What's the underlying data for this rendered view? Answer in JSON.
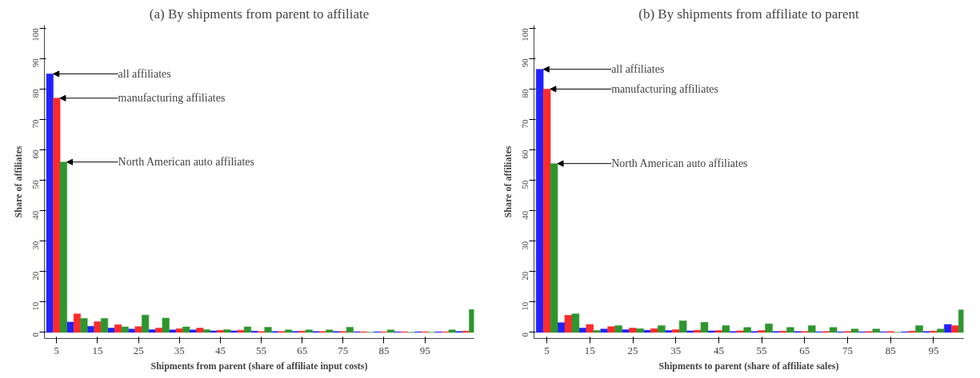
{
  "chart_data": [
    {
      "type": "bar",
      "title": "(a) By shipments from parent to affiliate",
      "xlabel": "Shipments from parent (share of affiliate input costs)",
      "ylabel": "Share of affiliates",
      "x": [
        5,
        10,
        15,
        20,
        25,
        30,
        35,
        40,
        45,
        50,
        55,
        60,
        65,
        70,
        75,
        80,
        85,
        90,
        95,
        100,
        105
      ],
      "series": [
        {
          "color": "#2222ff",
          "values": [
            85,
            3.4,
            2.0,
            1.4,
            1.1,
            0.9,
            0.8,
            0.8,
            0.5,
            0.5,
            0.4,
            0.3,
            0.3,
            0.3,
            0.3,
            0.2,
            0.2,
            0.2,
            0.2,
            0.2,
            0.3
          ]
        },
        {
          "color": "#ff2a2a",
          "values": [
            77,
            6.1,
            3.5,
            2.5,
            1.9,
            1.4,
            1.2,
            1.4,
            0.7,
            0.7,
            0.3,
            0.3,
            0.4,
            0.3,
            0.3,
            0.2,
            0.2,
            0.2,
            0.2,
            0.2,
            0.4
          ]
        },
        {
          "color": "#2e962e",
          "values": [
            56,
            4.6,
            4.6,
            1.8,
            5.7,
            4.7,
            1.8,
            0.9,
            0.9,
            1.8,
            1.7,
            0.8,
            0.8,
            0.8,
            1.7,
            0,
            0.8,
            0,
            0,
            0.8,
            7.5
          ]
        }
      ],
      "xlim": [
        2,
        107
      ],
      "xticks": [
        5,
        15,
        25,
        35,
        45,
        55,
        65,
        75,
        85,
        95
      ],
      "ylim": [
        -2,
        101
      ],
      "yticks": [
        0,
        10,
        20,
        30,
        40,
        50,
        60,
        70,
        80,
        90,
        100
      ],
      "grid": false,
      "annotations": [
        {
          "text": "all affiliates",
          "x": 4.2,
          "y": 85
        },
        {
          "text": "manufacturing affiliates",
          "x": 5.8,
          "y": 77
        },
        {
          "text": "North American auto affiliates",
          "x": 7.5,
          "y": 56
        }
      ]
    },
    {
      "type": "bar",
      "title": "(b) By shipments from affiliate to parent",
      "xlabel": "Shipments to parent (share of affiliate sales)",
      "ylabel": "Share of affiliates",
      "x": [
        5,
        10,
        15,
        20,
        25,
        30,
        35,
        40,
        45,
        50,
        55,
        60,
        65,
        70,
        75,
        80,
        85,
        90,
        95,
        100
      ],
      "series": [
        {
          "color": "#2222ff",
          "values": [
            86.5,
            3.2,
            1.4,
            1.1,
            0.9,
            0.7,
            0.6,
            0.5,
            0.5,
            0.3,
            0.3,
            0.3,
            0.3,
            0.2,
            0.2,
            0.2,
            0.2,
            0.2,
            0.3,
            2.6
          ]
        },
        {
          "color": "#ff2a2a",
          "values": [
            80,
            5.6,
            2.6,
            1.9,
            1.4,
            1.2,
            0.9,
            0.7,
            0.6,
            0.5,
            0.6,
            0.4,
            0.3,
            0.3,
            0.3,
            0.3,
            0.3,
            0.4,
            0.4,
            2.2
          ]
        },
        {
          "color": "#2e962e",
          "values": [
            55.5,
            6.1,
            0.6,
            2.2,
            1.2,
            2.2,
            3.8,
            3.3,
            2.2,
            1.6,
            2.8,
            1.6,
            2.2,
            1.6,
            1.1,
            1.1,
            0,
            2.2,
            1.1,
            7.4
          ]
        }
      ],
      "xlim": [
        2,
        102
      ],
      "xticks": [
        5,
        15,
        25,
        35,
        45,
        55,
        65,
        75,
        85,
        95
      ],
      "ylim": [
        -2,
        101
      ],
      "yticks": [
        0,
        10,
        20,
        30,
        40,
        50,
        60,
        70,
        80,
        90,
        100
      ],
      "grid": false,
      "annotations": [
        {
          "text": "all affiliates",
          "x": 4.2,
          "y": 86.5
        },
        {
          "text": "manufacturing affiliates",
          "x": 5.8,
          "y": 80
        },
        {
          "text": "North American auto affiliates",
          "x": 7.5,
          "y": 55.5
        }
      ]
    }
  ]
}
